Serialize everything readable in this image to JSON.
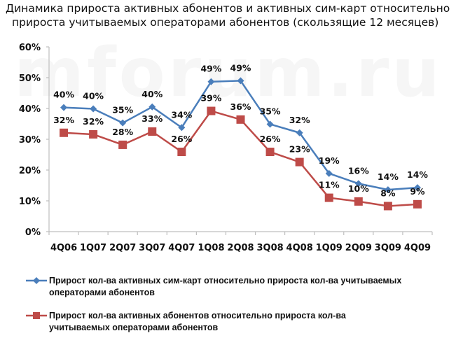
{
  "watermark": "mforum.ru",
  "chart_data": {
    "type": "line",
    "title": "Динамика прироста активных абонентов и активных сим-карт относительно прироста учитываемых операторами абонентов (скользящие 12 месяцев)",
    "title_lines": [
      "Динамика прироста активных абонентов и активных сим-карт относительно",
      "прироста учитываемых операторами абонентов (скользящие 12 месяцев)"
    ],
    "xlabel": "",
    "ylabel": "",
    "categories": [
      "4Q06",
      "1Q07",
      "2Q07",
      "3Q07",
      "4Q07",
      "1Q08",
      "2Q08",
      "3Q08",
      "4Q08",
      "1Q09",
      "2Q09",
      "3Q09",
      "4Q09"
    ],
    "ylim": [
      0,
      60
    ],
    "yticks": [
      0,
      10,
      20,
      30,
      40,
      50,
      60
    ],
    "ytick_labels": [
      "0%",
      "10%",
      "20%",
      "30%",
      "40%",
      "50%",
      "60%"
    ],
    "grid": false,
    "legend_position": "bottom",
    "series": [
      {
        "name": "Прирост кол-ва активных сим-карт относительно прироста кол-ва учитываемых операторами абонентов",
        "name_lines": [
          "Прирост кол-ва активных сим-карт относительно прироста кол-ва учитываемых",
          "операторами абонентов"
        ],
        "color": "#4a7ebb",
        "marker": "diamond",
        "values": [
          40.3,
          39.9,
          35.3,
          40.5,
          33.8,
          48.7,
          49.0,
          34.9,
          32.1,
          18.9,
          15.6,
          13.6,
          14.3
        ],
        "labels": [
          "40%",
          "40%",
          "35%",
          "40%",
          "34%",
          "49%",
          "49%",
          "35%",
          "32%",
          "19%",
          "16%",
          "14%",
          "14%"
        ]
      },
      {
        "name": "Прирост кол-ва активных абонентов относительно прироста кол-ва учитываемых операторами абонентов",
        "name_lines": [
          "Прирост кол-ва активных абонентов относительно прироста кол-ва",
          "учитываемых операторами абонентов"
        ],
        "color": "#be4b48",
        "marker": "square",
        "values": [
          32.1,
          31.6,
          28.2,
          32.5,
          25.9,
          39.2,
          36.4,
          25.9,
          22.6,
          11.0,
          9.8,
          8.3,
          8.9
        ],
        "labels": [
          "32%",
          "32%",
          "28%",
          "33%",
          "26%",
          "39%",
          "36%",
          "26%",
          "23%",
          "11%",
          "10%",
          "8%",
          "9%"
        ]
      }
    ]
  }
}
